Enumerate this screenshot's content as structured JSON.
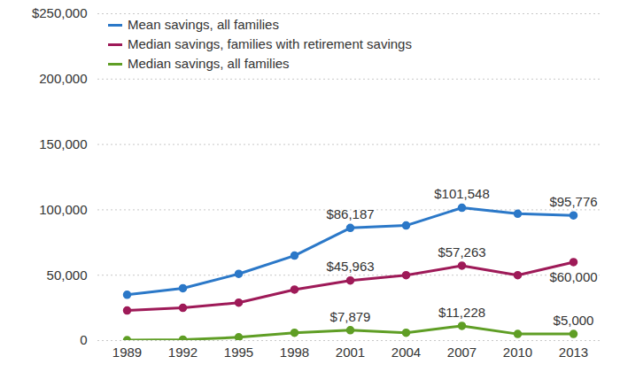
{
  "chart_data": {
    "type": "line",
    "categories": [
      "1989",
      "1992",
      "1995",
      "1998",
      "2001",
      "2004",
      "2007",
      "2010",
      "2013"
    ],
    "series": [
      {
        "name": "Mean savings, all families",
        "color": "#2b78c8",
        "marker": "circle",
        "values": [
          35000,
          40000,
          51000,
          65000,
          86187,
          88000,
          101548,
          97000,
          95776
        ],
        "value_labels": [
          null,
          null,
          null,
          null,
          "$86,187",
          null,
          "$101,548",
          null,
          "$95,776"
        ]
      },
      {
        "name": "Median savings, families with retirement savings",
        "color": "#9e1a58",
        "marker": "circle",
        "values": [
          23000,
          25000,
          29000,
          39000,
          45963,
          50000,
          57263,
          50000,
          60000
        ],
        "value_labels": [
          null,
          null,
          null,
          null,
          "$45,963",
          null,
          "$57,263",
          null,
          "$60,000"
        ]
      },
      {
        "name": "Median savings, all families",
        "color": "#5f9e25",
        "marker": "circle",
        "values": [
          300,
          700,
          2500,
          6000,
          7879,
          6000,
          11228,
          5000,
          5000
        ],
        "value_labels": [
          null,
          null,
          null,
          null,
          "$7,879",
          null,
          "$11,228",
          null,
          "$5,000"
        ]
      }
    ],
    "ylim": [
      0,
      250000
    ],
    "yticks": [
      0,
      {
        "value": 50000,
        "label": "50,000"
      },
      {
        "value": 100000,
        "label": "100,000"
      },
      {
        "value": 150000,
        "label": "150,000"
      },
      {
        "value": 200000,
        "label": "200,000"
      },
      {
        "value": 250000,
        "label": "$250,000"
      }
    ],
    "grid": true,
    "legend": "top-left",
    "data_labels": true
  }
}
